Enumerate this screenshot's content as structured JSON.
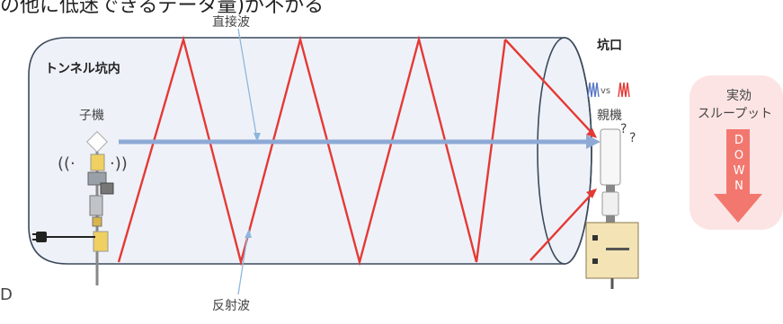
{
  "top_caption": "の他に低迷できるデータ量)が不かる",
  "labels": {
    "direct_wave": "直接波",
    "reflected_wave": "反射波",
    "tunnel_inside": "トンネル坑内",
    "slave_unit": "子機",
    "tunnel_entrance": "坑口",
    "master_unit": "親機",
    "vs": "vs",
    "question_marks": "?",
    "throughput_line1": "実効",
    "throughput_line2": "スループット",
    "down_letters": [
      "D",
      "O",
      "W",
      "N"
    ],
    "left_fragment": "D"
  },
  "colors": {
    "tunnel_fill": "#eef2f8",
    "tunnel_stroke": "#3c4a5c",
    "reflection": "#e53935",
    "direct": "#8fa9d6",
    "throughput_bg": "#fde4e4",
    "down_arrow": "#f2786f"
  },
  "icons": {
    "wireless": "wireless-signal-icon",
    "plug": "power-plug-icon",
    "waves": "waveform-comparison-icon"
  }
}
